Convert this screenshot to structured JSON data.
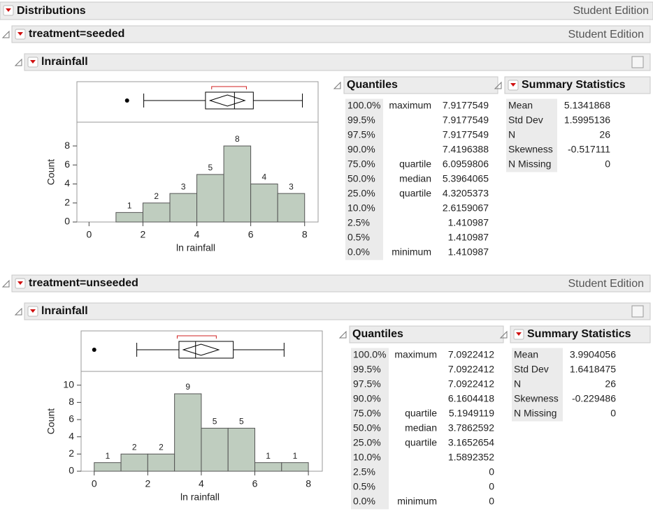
{
  "header": {
    "title": "Distributions",
    "edition": "Student Edition"
  },
  "groups": [
    {
      "title": "treatment=seeded",
      "edition": "Student Edition",
      "variable": "lnrainfall",
      "quantiles": {
        "title": "Quantiles",
        "rows": [
          {
            "pct": "100.0%",
            "label": "maximum",
            "value": "7.9177549"
          },
          {
            "pct": "99.5%",
            "value": "7.9177549"
          },
          {
            "pct": "97.5%",
            "value": "7.9177549"
          },
          {
            "pct": "90.0%",
            "value": "7.4196388"
          },
          {
            "pct": "75.0%",
            "label": "quartile",
            "value": "6.0959806"
          },
          {
            "pct": "50.0%",
            "label": "median",
            "value": "5.3964065"
          },
          {
            "pct": "25.0%",
            "label": "quartile",
            "value": "4.3205373"
          },
          {
            "pct": "10.0%",
            "value": "2.6159067"
          },
          {
            "pct": "2.5%",
            "value": "1.410987"
          },
          {
            "pct": "0.5%",
            "value": "1.410987"
          },
          {
            "pct": "0.0%",
            "label": "minimum",
            "value": "1.410987"
          }
        ]
      },
      "summary": {
        "title": "Summary Statistics",
        "rows": [
          [
            "Mean",
            "5.1341868"
          ],
          [
            "Std Dev",
            "1.5995136"
          ],
          [
            "N",
            "26"
          ],
          [
            "Skewness",
            "-0.517111"
          ],
          [
            "N Missing",
            "0"
          ]
        ]
      }
    },
    {
      "title": "treatment=unseeded",
      "edition": "Student Edition",
      "variable": "lnrainfall",
      "quantiles": {
        "title": "Quantiles",
        "rows": [
          {
            "pct": "100.0%",
            "label": "maximum",
            "value": "7.0922412"
          },
          {
            "pct": "99.5%",
            "value": "7.0922412"
          },
          {
            "pct": "97.5%",
            "value": "7.0922412"
          },
          {
            "pct": "90.0%",
            "value": "6.1604418"
          },
          {
            "pct": "75.0%",
            "label": "quartile",
            "value": "5.1949119"
          },
          {
            "pct": "50.0%",
            "label": "median",
            "value": "3.7862592"
          },
          {
            "pct": "25.0%",
            "label": "quartile",
            "value": "3.1652654"
          },
          {
            "pct": "10.0%",
            "value": "1.5892352"
          },
          {
            "pct": "2.5%",
            "value": "0"
          },
          {
            "pct": "0.5%",
            "value": "0"
          },
          {
            "pct": "0.0%",
            "label": "minimum",
            "value": "0"
          }
        ]
      },
      "summary": {
        "title": "Summary Statistics",
        "rows": [
          [
            "Mean",
            "3.9904056"
          ],
          [
            "Std Dev",
            "1.6418475"
          ],
          [
            "N",
            "26"
          ],
          [
            "Skewness",
            "-0.229486"
          ],
          [
            "N Missing",
            "0"
          ]
        ]
      }
    }
  ],
  "chart_data": [
    {
      "type": "histogram",
      "xlabel": "ln rainfall",
      "ylabel": "Count",
      "color": "#bfcdbf",
      "bins": [
        1,
        2,
        3,
        4,
        5,
        6,
        7,
        8
      ],
      "values": [
        1,
        2,
        3,
        5,
        8,
        4,
        3
      ],
      "xlim": [
        -0.45,
        8.5
      ],
      "xticks": [
        0,
        2,
        4,
        6,
        8
      ],
      "ylim": [
        0,
        10.5
      ],
      "yticks": [
        0,
        2,
        4,
        6,
        8
      ],
      "boxplot": {
        "outliers": [
          1.410987
        ],
        "whisker_low": 2.03,
        "q1": 4.3205373,
        "median": 5.3964065,
        "q3": 6.0959806,
        "whisker_high": 7.9177549,
        "mean": 5.1341868,
        "mean_ci": [
          4.49,
          5.78
        ],
        "shortest_half": [
          4.55,
          5.84
        ]
      }
    },
    {
      "type": "histogram",
      "xlabel": "ln rainfall",
      "ylabel": "Count",
      "color": "#bfcdbf",
      "bins": [
        0,
        1,
        2,
        3,
        4,
        5,
        6,
        7,
        8
      ],
      "values": [
        1,
        2,
        2,
        9,
        5,
        5,
        1,
        1
      ],
      "xlim": [
        -0.49,
        8.52
      ],
      "xticks": [
        0,
        2,
        4,
        6,
        8
      ],
      "ylim": [
        0,
        11.6
      ],
      "yticks": [
        0,
        2,
        4,
        6,
        8,
        10
      ],
      "boxplot": {
        "outliers": [
          0
        ],
        "whisker_low": 1.5892352,
        "q1": 3.1652654,
        "median": 3.7862592,
        "q3": 5.1949119,
        "whisker_high": 7.0922412,
        "mean": 3.9904056,
        "mean_ci": [
          3.33,
          4.65
        ],
        "shortest_half": [
          3.1,
          4.56
        ]
      }
    }
  ]
}
